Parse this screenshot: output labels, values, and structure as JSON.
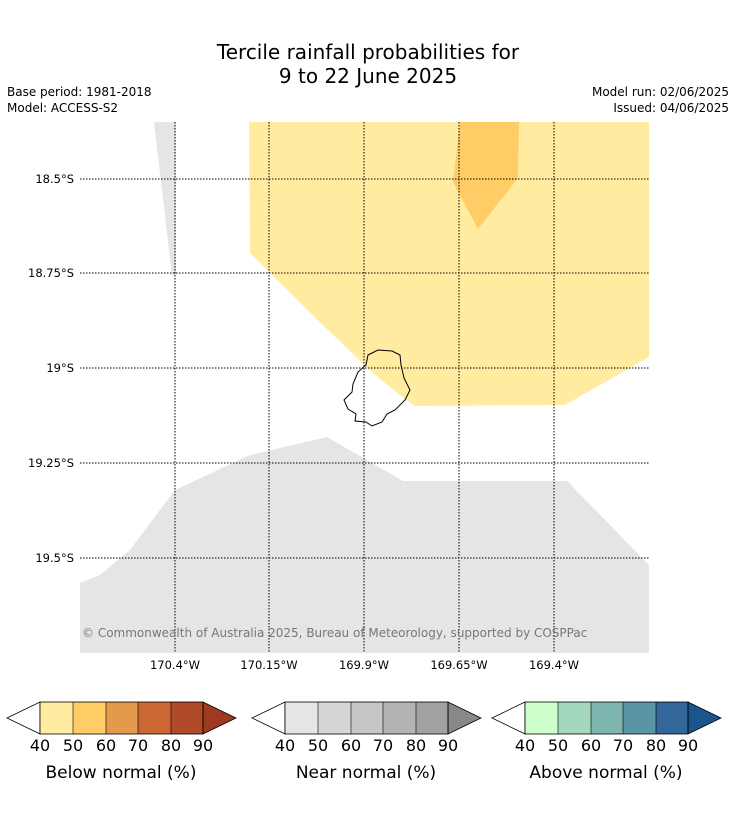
{
  "title_line1": "Tercile rainfall probabilities for",
  "title_line2": "9 to 22 June 2025",
  "base_period": "Base period: 1981-2018",
  "model": "Model: ACCESS-S2",
  "model_run": "Model run: 02/06/2025",
  "issued": "Issued: 04/06/2025",
  "lat_labels": [
    "18.5°S",
    "18.75°S",
    "19°S",
    "19.25°S",
    "19.5°S"
  ],
  "lon_labels": [
    "170.4°W",
    "170.15°W",
    "169.9°W",
    "169.65°W",
    "169.4°W"
  ],
  "credit": "© Commonwealth of Australia 2025, Bureau of Meteorology, supported by COSPPac",
  "colorbars": [
    {
      "title": "Below normal (%)",
      "ticks": [
        "40",
        "50",
        "60",
        "70",
        "80",
        "90"
      ],
      "colors": [
        "#ffffff",
        "#ffeca0",
        "#ffcc66",
        "#e39a4a",
        "#cc6633",
        "#b04a28",
        "#9e3a22"
      ]
    },
    {
      "title": "Near normal (%)",
      "ticks": [
        "40",
        "50",
        "60",
        "70",
        "80",
        "90"
      ],
      "colors": [
        "#ffffff",
        "#e5e5e5",
        "#d6d6d6",
        "#c6c6c6",
        "#b3b3b3",
        "#a2a2a2",
        "#888888"
      ]
    },
    {
      "title": "Above normal (%)",
      "ticks": [
        "40",
        "50",
        "60",
        "70",
        "80",
        "90"
      ],
      "colors": [
        "#ffffff",
        "#ccffcc",
        "#a4d8bd",
        "#80b6b0",
        "#5a95a3",
        "#336699",
        "#1a5590"
      ]
    }
  ],
  "map_colors": {
    "below_40_50": "#ffeca0",
    "below_50_60": "#ffcc66",
    "near_40_50": "#e5e5e5",
    "land_outline": "#000000"
  }
}
